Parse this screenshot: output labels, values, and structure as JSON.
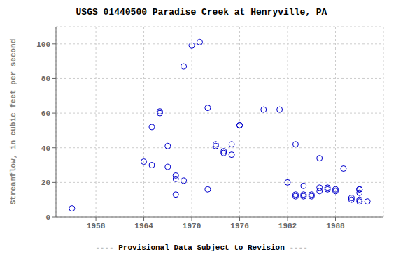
{
  "chart_data": {
    "type": "scatter",
    "title": "USGS 01440500 Paradise Creek at Henryville, PA",
    "ylabel": "Streamflow, in cubic feet per second",
    "subtitle": "---- Provisional Data Subject to Revision ----",
    "x": [
      1955,
      1964,
      1965,
      1965,
      1966,
      1966,
      1967,
      1967,
      1968,
      1968,
      1968,
      1969,
      1969,
      1970,
      1971,
      1972,
      1972,
      1973,
      1973,
      1974,
      1974,
      1975,
      1975,
      1976,
      1976,
      1979,
      1981,
      1982,
      1983,
      1983,
      1983,
      1984,
      1984,
      1984,
      1985,
      1985,
      1986,
      1986,
      1986,
      1987,
      1987,
      1988,
      1988,
      1989,
      1990,
      1990,
      1991,
      1991,
      1991,
      1991,
      1991,
      1992
    ],
    "values": [
      5,
      32,
      52,
      30,
      61,
      60,
      41,
      29,
      22,
      24,
      13,
      87,
      21,
      99,
      101,
      63,
      16,
      42,
      41,
      38,
      37,
      42,
      36,
      53,
      53,
      62,
      62,
      20,
      12,
      13,
      42,
      18,
      12,
      13,
      13,
      12,
      17,
      15,
      34,
      16,
      17,
      15,
      16,
      28,
      10,
      11,
      14,
      16,
      16,
      10,
      9,
      9
    ],
    "color": "#0000cc",
    "marker": "circle",
    "xlim": [
      1953,
      1994
    ],
    "ylim": [
      0,
      110
    ],
    "xticks": [
      1958,
      1964,
      1970,
      1976,
      1982,
      1988
    ],
    "yticks": [
      0,
      20,
      40,
      60,
      80,
      100
    ],
    "grid": true
  }
}
